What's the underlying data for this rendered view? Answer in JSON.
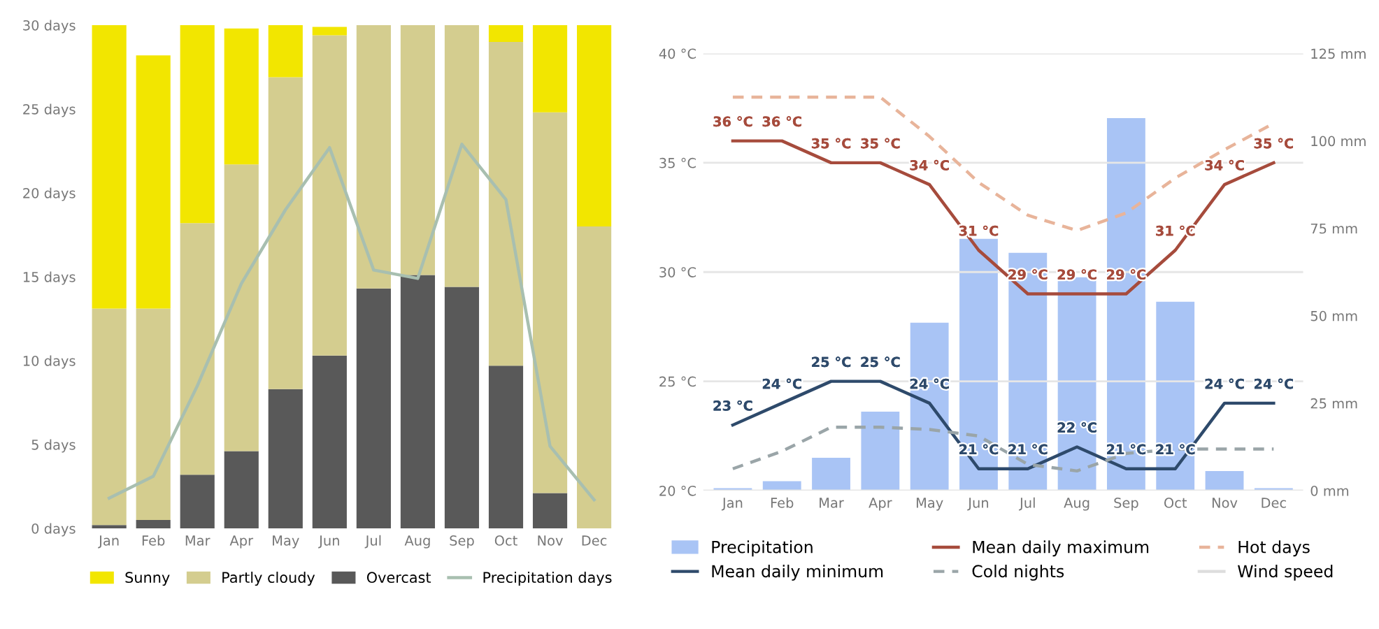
{
  "chart_data": [
    {
      "type": "bar",
      "stacked": true,
      "categories": [
        "Jan",
        "Feb",
        "Mar",
        "Apr",
        "May",
        "Jun",
        "Jul",
        "Aug",
        "Sep",
        "Oct",
        "Nov",
        "Dec"
      ],
      "ylim": [
        0,
        30
      ],
      "yticks": [
        {
          "value": 0,
          "label": "0 days"
        },
        {
          "value": 5,
          "label": "5 days"
        },
        {
          "value": 10,
          "label": "10 days"
        },
        {
          "value": 15,
          "label": "15 days"
        },
        {
          "value": 20,
          "label": "20 days"
        },
        {
          "value": 25,
          "label": "25 days"
        },
        {
          "value": 30,
          "label": "30 days"
        }
      ],
      "grid": false,
      "legend": "bottom",
      "marker": "none",
      "series": [
        {
          "name": "Overcast",
          "color": "#595959",
          "values": [
            0.2,
            0.5,
            3.2,
            4.6,
            8.3,
            10.3,
            14.3,
            15.1,
            14.4,
            9.7,
            2.1,
            0
          ]
        },
        {
          "name": "Partly cloudy",
          "color": "#d4cd8f",
          "values": [
            12.9,
            12.6,
            15.0,
            17.1,
            18.6,
            19.1,
            15.7,
            14.9,
            15.6,
            19.3,
            22.7,
            18.0
          ]
        },
        {
          "name": "Sunny",
          "color": "#f2e600",
          "values": [
            16.9,
            15.1,
            11.8,
            8.1,
            3.1,
            0.5,
            0,
            0,
            0,
            1.0,
            5.2,
            12.0
          ]
        },
        {
          "name": "Precipitation days",
          "type": "line",
          "color": "#a8bfb0",
          "values": [
            1.8,
            3.1,
            8.5,
            14.6,
            19.0,
            22.7,
            15.4,
            14.9,
            22.9,
            19.6,
            4.9,
            1.7
          ]
        }
      ]
    },
    {
      "type": "bar",
      "categories": [
        "Jan",
        "Feb",
        "Mar",
        "Apr",
        "May",
        "Jun",
        "Jul",
        "Aug",
        "Sep",
        "Oct",
        "Nov",
        "Dec"
      ],
      "ylim": [
        20,
        40
      ],
      "yticks": [
        {
          "value": 20,
          "label": "20 °C"
        },
        {
          "value": 25,
          "label": "25 °C"
        },
        {
          "value": 30,
          "label": "30 °C"
        },
        {
          "value": 35,
          "label": "35 °C"
        },
        {
          "value": 40,
          "label": "40 °C"
        }
      ],
      "y2lim": [
        0,
        125
      ],
      "y2ticks": [
        {
          "value": 0,
          "label": "0 mm"
        },
        {
          "value": 25,
          "label": "25 mm"
        },
        {
          "value": 50,
          "label": "50 mm"
        },
        {
          "value": 75,
          "label": "75 mm"
        },
        {
          "value": 100,
          "label": "100 mm"
        },
        {
          "value": 125,
          "label": "125 mm"
        }
      ],
      "grid": "y",
      "legend": "bottom",
      "marker": "none",
      "series": [
        {
          "name": "Precipitation",
          "axis": "y2",
          "color": "#a9c4f5",
          "values": [
            0.7,
            2.7,
            9.4,
            22.6,
            48,
            72,
            68,
            61,
            106.5,
            54,
            5.6,
            0.7
          ]
        },
        {
          "name": "Mean daily minimum",
          "type": "line",
          "color": "#2e4a6b",
          "values": [
            23,
            24,
            25,
            25,
            24,
            21,
            21,
            22,
            21,
            21,
            24,
            24
          ],
          "value_labels": [
            "23 °C",
            "24 °C",
            "25 °C",
            "25 °C",
            "24 °C",
            "21 °C",
            "21 °C",
            "22 °C",
            "21 °C",
            "21 °C",
            "24 °C",
            "24 °C"
          ]
        },
        {
          "name": "Mean daily maximum",
          "type": "line",
          "color": "#a64b3c",
          "values": [
            36,
            36,
            35,
            35,
            34,
            31,
            29,
            29,
            29,
            31,
            34,
            35
          ],
          "value_labels": [
            "36 °C",
            "36 °C",
            "35 °C",
            "35 °C",
            "34 °C",
            "31 °C",
            "29 °C",
            "29 °C",
            "29 °C",
            "31 °C",
            "34 °C",
            "35 °C"
          ]
        },
        {
          "name": "Cold nights",
          "type": "line",
          "line_style": "dashed",
          "color": "#9aa5a8",
          "values": [
            21.0,
            21.8,
            22.9,
            22.9,
            22.8,
            22.5,
            21.2,
            20.9,
            21.7,
            21.9,
            21.9,
            21.9
          ]
        },
        {
          "name": "Hot days",
          "type": "line",
          "line_style": "dashed",
          "color": "#e8b49a",
          "values": [
            38.0,
            38.0,
            38.0,
            38.0,
            36.2,
            34.1,
            32.6,
            31.9,
            32.7,
            34.3,
            35.6,
            36.8
          ]
        },
        {
          "name": "Wind speed",
          "type": "line",
          "color": "#dddddd",
          "values": [
            null,
            null,
            null,
            null,
            null,
            null,
            null,
            null,
            null,
            null,
            null,
            null
          ]
        }
      ]
    }
  ]
}
